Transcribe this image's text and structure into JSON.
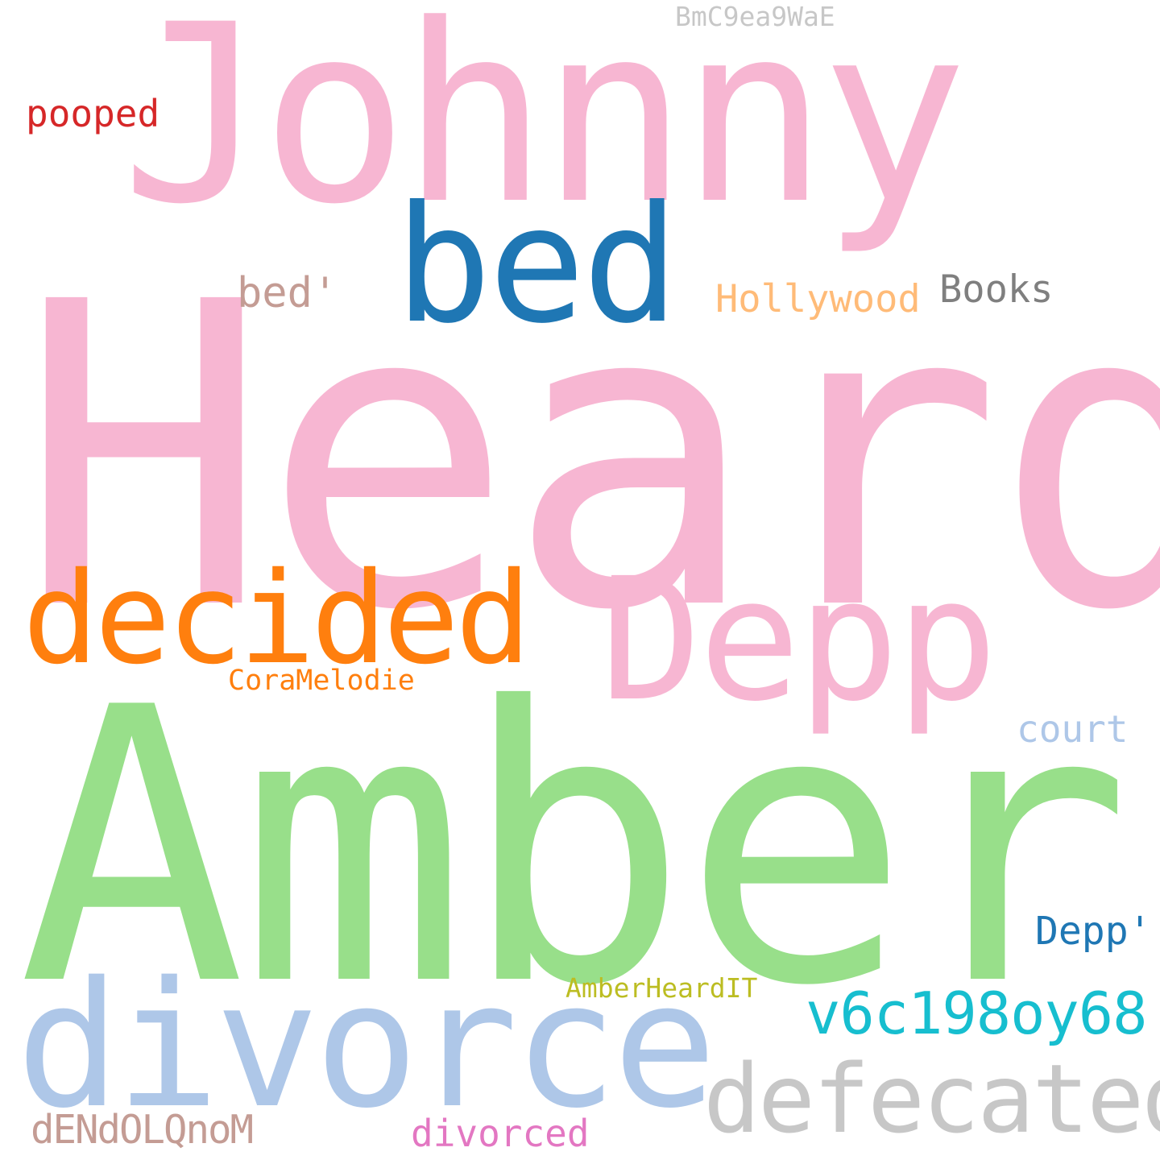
{
  "words": [
    {
      "text": "Heard",
      "color": "#f7b6d2"
    },
    {
      "text": "Amber",
      "color": "#98df8a"
    },
    {
      "text": "Johnny",
      "color": "#f7b6d2"
    },
    {
      "text": "divorce",
      "color": "#aec7e8"
    },
    {
      "text": "Depp",
      "color": "#f7b6d2"
    },
    {
      "text": "bed",
      "color": "#1f77b4"
    },
    {
      "text": "decided",
      "color": "#ff7f0e"
    },
    {
      "text": "defecated",
      "color": "#c7c7c7"
    },
    {
      "text": "v6c198oy68",
      "color": "#17becf"
    },
    {
      "text": "court",
      "color": "#aec7e8"
    },
    {
      "text": "bed'",
      "color": "#c49c94"
    },
    {
      "text": "Hollywood",
      "color": "#ffbb78"
    },
    {
      "text": "Books",
      "color": "#7f7f7f"
    },
    {
      "text": "Depp'",
      "color": "#1f77b4"
    },
    {
      "text": "dENdOLQnoM",
      "color": "#c49c94"
    },
    {
      "text": "divorced",
      "color": "#e377c2"
    },
    {
      "text": "pooped",
      "color": "#d62728"
    },
    {
      "text": "CoraMelodie",
      "color": "#ff7f0e"
    },
    {
      "text": "AmberHeardIT",
      "color": "#bcbd22"
    },
    {
      "text": "BmC9ea9WaE",
      "color": "#c7c7c7"
    }
  ]
}
